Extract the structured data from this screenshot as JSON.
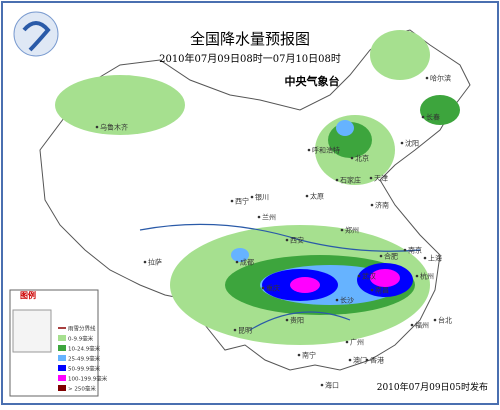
{
  "header": {
    "title": "全国降水量预报图",
    "period": "2010年07月09日08时一07月10日08时",
    "issuer": "中央气象台"
  },
  "legend": {
    "title": "图例",
    "items": [
      "雨雪分界线",
      "0-9.9毫米",
      "10-24.9毫米",
      "25-49.9毫米",
      "50-99.9毫米",
      "100-199.9毫米",
      "> 250毫米"
    ]
  },
  "cities": [
    "乌鲁木齐",
    "哈尔滨",
    "长春",
    "沈阳",
    "北京",
    "天津",
    "呼和浩特",
    "石家庄",
    "太原",
    "银川",
    "西宁",
    "兰州",
    "济南",
    "郑州",
    "西安",
    "合肥",
    "南京",
    "上海",
    "成都",
    "武汉",
    "杭州",
    "拉萨",
    "重庆",
    "长沙",
    "南昌",
    "福州",
    "台北",
    "贵阳",
    "昆明",
    "广州",
    "南宁",
    "香港",
    "澳门",
    "海口"
  ],
  "footer": "2010年07月09日05时发布"
}
